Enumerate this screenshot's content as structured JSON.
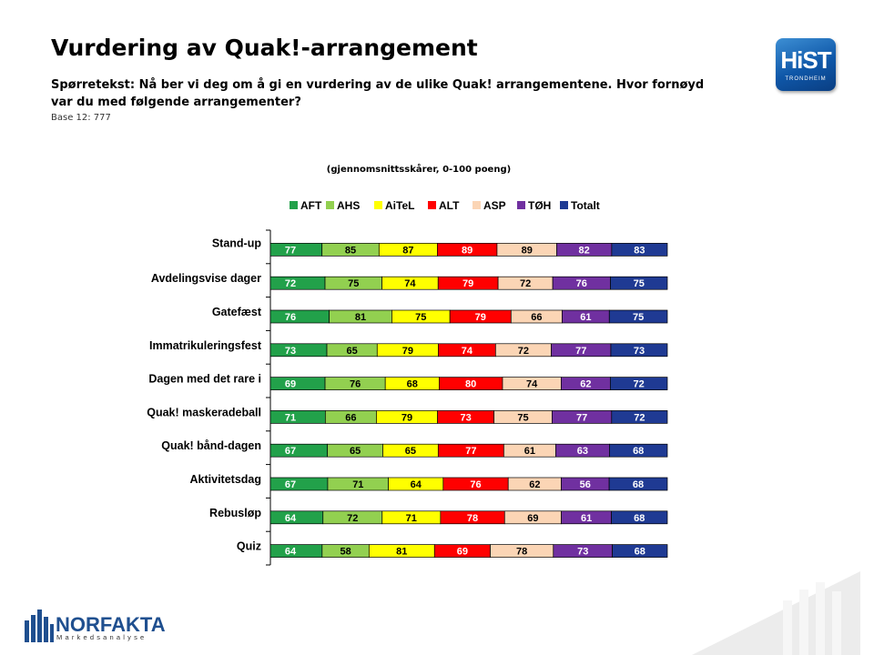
{
  "header": {
    "title": "Vurdering av Quak!-arrangement",
    "question": "Spørretekst: Nå ber vi deg om å gi en vurdering av de ulike Quak! arrangementene. Hvor fornøyd var du med følgende arrangementer?",
    "base": "Base 12: 777"
  },
  "logos": {
    "hist_text": "HiST",
    "hist_sub": "TRONDHEIM",
    "norfakta_name": "NORFAKTA",
    "norfakta_sub": "Markedsanalyse"
  },
  "chart_data": {
    "type": "bar",
    "orientation": "horizontal",
    "stacked": true,
    "subtitle": "(gjennomsnittsskårer, 0-100 poeng)",
    "legend_position": "top",
    "categories": [
      "Stand-up",
      "Avdelingsvise dager",
      "Gatefæst",
      "Immatrikuleringsfest",
      "Dagen med det rare i",
      "Quak! maskeradeball",
      "Quak! bånd-dagen",
      "Aktivitetsdag",
      "Rebusløp",
      "Quiz"
    ],
    "series": [
      {
        "name": "AFT",
        "color": "#22a14a",
        "values": [
          77,
          72,
          76,
          73,
          69,
          71,
          67,
          67,
          64,
          64
        ]
      },
      {
        "name": "AHS",
        "color": "#92d050",
        "values": [
          85,
          75,
          81,
          65,
          76,
          66,
          65,
          71,
          72,
          58
        ]
      },
      {
        "name": "AiTeL",
        "color": "#ffff00",
        "values": [
          87,
          74,
          75,
          79,
          68,
          79,
          65,
          64,
          71,
          81
        ]
      },
      {
        "name": "ALT",
        "color": "#ff0000",
        "values": [
          89,
          79,
          79,
          74,
          80,
          73,
          77,
          76,
          78,
          69
        ]
      },
      {
        "name": "ASP",
        "color": "#fbd5b5",
        "values": [
          89,
          72,
          66,
          72,
          74,
          75,
          61,
          62,
          69,
          78
        ]
      },
      {
        "name": "TØH",
        "color": "#7030a0",
        "values": [
          82,
          76,
          61,
          77,
          62,
          77,
          63,
          56,
          61,
          73
        ]
      },
      {
        "name": "Totalt",
        "color": "#1f3a93",
        "values": [
          83,
          75,
          75,
          73,
          72,
          72,
          68,
          68,
          68,
          68
        ]
      }
    ]
  }
}
